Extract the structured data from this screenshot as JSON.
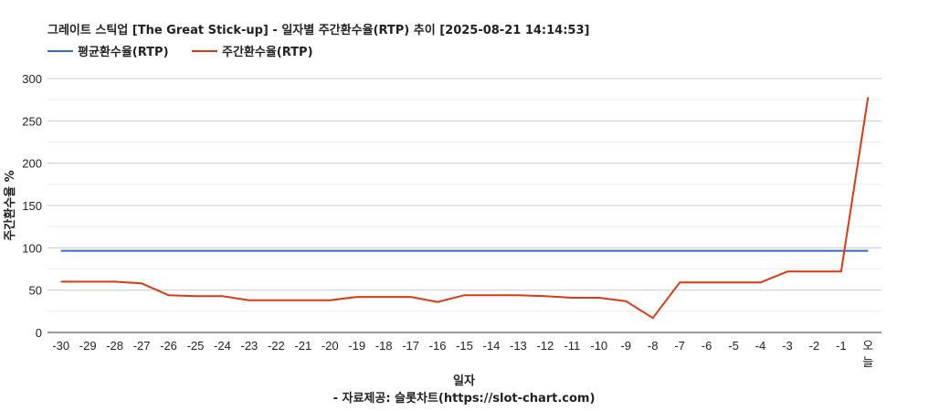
{
  "chart_data": {
    "type": "line",
    "title": "그레이트 스틱업 [The Great Stick-up] - 일자별 주간환수율(RTP) 추이 [2025-08-21 14:14:53]",
    "xlabel": "일자",
    "ylabel": "주간환수율 %",
    "source": "- 자료제공: 슬롯차트(https://slot-chart.com)",
    "legend_position": "top-left",
    "grid": true,
    "ylim": [
      0,
      300
    ],
    "yticks": [
      "0",
      "50",
      "100",
      "150",
      "200",
      "250",
      "300"
    ],
    "categories": [
      "-30",
      "-29",
      "-28",
      "-27",
      "-26",
      "-25",
      "-24",
      "-23",
      "-22",
      "-21",
      "-20",
      "-19",
      "-18",
      "-17",
      "-16",
      "-15",
      "-14",
      "-13",
      "-12",
      "-11",
      "-10",
      "-9",
      "-8",
      "-7",
      "-6",
      "-5",
      "-4",
      "-3",
      "-2",
      "-1",
      "오늘"
    ],
    "series": [
      {
        "name": "평균환수율(RTP)",
        "color": "#3366cc",
        "values": [
          96.5,
          96.5,
          96.5,
          96.5,
          96.5,
          96.5,
          96.5,
          96.5,
          96.5,
          96.5,
          96.5,
          96.5,
          96.5,
          96.5,
          96.5,
          96.5,
          96.5,
          96.5,
          96.5,
          96.5,
          96.5,
          96.5,
          96.5,
          96.5,
          96.5,
          96.5,
          96.5,
          96.5,
          96.5,
          96.5,
          96.5
        ]
      },
      {
        "name": "주간환수율(RTP)",
        "color": "#dc3912",
        "values": [
          60,
          60,
          60,
          58,
          44,
          43,
          43,
          38,
          38,
          38,
          38,
          42,
          42,
          42,
          36,
          44,
          44,
          44,
          43,
          41,
          41,
          37,
          17,
          59,
          59,
          59,
          59,
          72,
          72,
          72,
          278
        ]
      }
    ]
  }
}
